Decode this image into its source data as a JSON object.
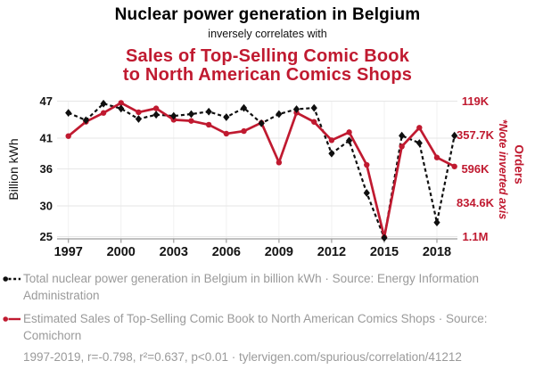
{
  "header": {
    "title": "Nuclear power generation in Belgium",
    "connector": "inversely correlates with",
    "subtitle_line1": "Sales of Top-Selling Comic Book",
    "subtitle_line2": "to North American Comics Shops"
  },
  "axes": {
    "left_label": "Billion kWh",
    "right_label": "Orders",
    "right_note": "*Note inverted axis"
  },
  "chart_data": {
    "type": "line",
    "title": "Nuclear power generation in Belgium inversely correlates with Sales of Top-Selling Comic Book to North American Comics Shops",
    "x": [
      1997,
      1998,
      1999,
      2000,
      2001,
      2002,
      2003,
      2004,
      2005,
      2006,
      2007,
      2008,
      2009,
      2010,
      2011,
      2012,
      2013,
      2014,
      2015,
      2016,
      2017,
      2018,
      2019
    ],
    "x_tick_years": [
      1997,
      2000,
      2003,
      2006,
      2009,
      2012,
      2015,
      2018
    ],
    "series": [
      {
        "name": "Total nuclear power generation in Belgium",
        "unit": "billion kWh",
        "axis": "left",
        "color": "#0f0f0f",
        "line": "dashed",
        "marker": "diamond",
        "values": [
          45.1,
          43.9,
          46.6,
          45.8,
          44.1,
          44.8,
          44.6,
          44.9,
          45.3,
          44.4,
          45.9,
          43.4,
          44.9,
          45.7,
          45.9,
          38.5,
          40.6,
          32.1,
          24.8,
          41.4,
          40.2,
          27.3,
          41.4
        ]
      },
      {
        "name": "Estimated Sales of Top-Selling Comic Book to North American Comics Shops",
        "unit": "orders (thousands)",
        "axis": "right-inverted",
        "color": "#c01a30",
        "line": "solid",
        "marker": "circle",
        "values_thousands": [
          365,
          264,
          202,
          131,
          197,
          170,
          250,
          258,
          285,
          348,
          330,
          271,
          551,
          200,
          265,
          394,
          338,
          568,
          1077,
          438,
          306,
          516,
          579
        ]
      }
    ],
    "left_axis": {
      "label": "Billion kWh",
      "ticks": [
        47,
        41,
        36,
        30,
        25
      ],
      "tick_labels": [
        "47",
        "41",
        "36",
        "30",
        "25"
      ]
    },
    "right_axis": {
      "label": "Orders",
      "note": "*Note inverted axis",
      "inverted": true,
      "ticks_thousands": [
        119,
        357.7,
        596,
        834.6,
        1073.3
      ],
      "tick_labels": [
        "119K",
        "357.7K",
        "596K",
        "834.6K",
        "1.1M"
      ]
    },
    "grid": true,
    "legend_position": "below"
  },
  "legend": [
    {
      "label": "Total nuclear power generation in Belgium in billion kWh · Source: Energy Information Administration"
    },
    {
      "label": "Estimated Sales of Top-Selling Comic Book to North American Comics Shops · Source: Comichorn"
    }
  ],
  "footer": "1997-2019, r=-0.798, r²=0.637, p<0.01 · tylervigen.com/spurious/correlation/41212",
  "colors": {
    "accent_red": "#c01a30",
    "text_gray": "#9a9a9a",
    "grid": "#e6e6e6",
    "grid_vertical": "#f1f1f1",
    "axis": "#9c9c9c"
  }
}
